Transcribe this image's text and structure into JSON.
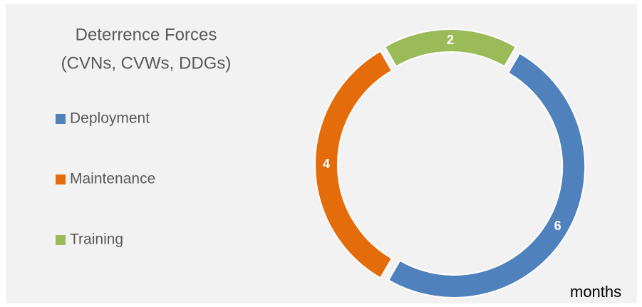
{
  "chart_data": {
    "type": "donut",
    "title": [
      "Deterrence Forces",
      "(CVNs, CVWs, DDGs)"
    ],
    "categories": [
      "Deployment",
      "Maintenance",
      "Training"
    ],
    "values": [
      6,
      4,
      2
    ],
    "colors": [
      "#4f81bd",
      "#e46c0a",
      "#9bbb59"
    ],
    "first_slice_angle": 30,
    "legend": "left",
    "annotation": "months"
  }
}
